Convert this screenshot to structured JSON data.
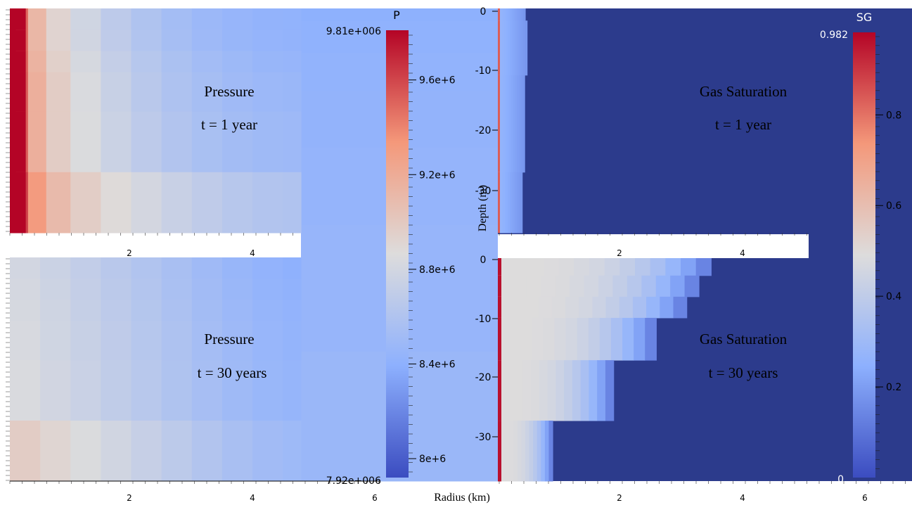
{
  "chart_data": [
    {
      "type": "heatmap",
      "panel": "top-left",
      "field": "P",
      "annotations": [
        "Pressure",
        "t = 1 year"
      ],
      "xticks": [
        "2",
        "4"
      ],
      "xlim": [
        0,
        4.8
      ],
      "ylim": [
        -37,
        0
      ],
      "x": [
        0,
        0.1,
        0.3,
        0.6,
        1.0,
        1.5,
        2.0,
        2.5,
        3.0,
        3.5,
        4.0,
        4.5,
        4.8
      ],
      "layers": [
        {
          "depth": [
            -3.5,
            0
          ],
          "values": [
            9810000.0,
            9750000.0,
            9250000.0,
            9000000.0,
            8850000.0,
            8720000.0,
            8630000.0,
            8560000.0,
            8500000.0,
            8460000.0,
            8440000.0,
            8420000.0,
            8420000.0
          ]
        },
        {
          "depth": [
            -7,
            -3.5
          ],
          "values": [
            9810000.0,
            9750000.0,
            9250000.0,
            9000000.0,
            8850000.0,
            8730000.0,
            8640000.0,
            8570000.0,
            8510000.0,
            8470000.0,
            8450000.0,
            8430000.0,
            8430000.0
          ]
        },
        {
          "depth": [
            -10.5,
            -7
          ],
          "values": [
            9810000.0,
            9750000.0,
            9280000.0,
            9020000.0,
            8880000.0,
            8760000.0,
            8670000.0,
            8600000.0,
            8540000.0,
            8500000.0,
            8470000.0,
            8450000.0,
            8450000.0
          ]
        },
        {
          "depth": [
            -17,
            -10.5
          ],
          "values": [
            9810000.0,
            9760000.0,
            9300000.0,
            9050000.0,
            8900000.0,
            8780000.0,
            8690000.0,
            8620000.0,
            8560000.0,
            8520000.0,
            8490000.0,
            8470000.0,
            8470000.0
          ]
        },
        {
          "depth": [
            -27,
            -17
          ],
          "values": [
            9810000.0,
            9760000.0,
            9300000.0,
            9050000.0,
            8900000.0,
            8800000.0,
            8710000.0,
            8640000.0,
            8580000.0,
            8540000.0,
            8510000.0,
            8490000.0,
            8490000.0
          ]
        },
        {
          "depth": [
            -37,
            -27
          ],
          "values": [
            9810000.0,
            9780000.0,
            9450000.0,
            9180000.0,
            9020000.0,
            8920000.0,
            8840000.0,
            8770000.0,
            8710000.0,
            8660000.0,
            8620000.0,
            8600000.0,
            8600000.0
          ]
        }
      ]
    },
    {
      "type": "heatmap",
      "panel": "bottom-left",
      "field": "P",
      "annotations": [
        "Pressure",
        "t = 30 years"
      ],
      "xticks": [
        "2",
        "4",
        "6"
      ],
      "xlabel": "Radius (km)",
      "xlim": [
        0,
        4.8
      ],
      "ylim": [
        -37,
        0
      ],
      "x": [
        0,
        0.5,
        1.0,
        1.5,
        2.0,
        2.5,
        3.0,
        3.5,
        4.0,
        4.5,
        4.8
      ],
      "layers": [
        {
          "depth": [
            -3.5,
            0
          ],
          "values": [
            8820000.0,
            8780000.0,
            8730000.0,
            8680000.0,
            8630000.0,
            8580000.0,
            8530000.0,
            8480000.0,
            8440000.0,
            8410000.0,
            8400000.0
          ]
        },
        {
          "depth": [
            -7,
            -3.5
          ],
          "values": [
            8830000.0,
            8790000.0,
            8740000.0,
            8690000.0,
            8640000.0,
            8590000.0,
            8540000.0,
            8490000.0,
            8450000.0,
            8420000.0,
            8410000.0
          ]
        },
        {
          "depth": [
            -10.5,
            -7
          ],
          "values": [
            8840000.0,
            8800000.0,
            8750000.0,
            8700000.0,
            8650000.0,
            8600000.0,
            8550000.0,
            8500000.0,
            8460000.0,
            8430000.0,
            8420000.0
          ]
        },
        {
          "depth": [
            -17,
            -10.5
          ],
          "values": [
            8850000.0,
            8810000.0,
            8760000.0,
            8710000.0,
            8660000.0,
            8610000.0,
            8560000.0,
            8510000.0,
            8470000.0,
            8440000.0,
            8430000.0
          ]
        },
        {
          "depth": [
            -27,
            -17
          ],
          "values": [
            8860000.0,
            8820000.0,
            8770000.0,
            8720000.0,
            8670000.0,
            8620000.0,
            8570000.0,
            8520000.0,
            8480000.0,
            8450000.0,
            8440000.0
          ]
        },
        {
          "depth": [
            -37,
            -27
          ],
          "values": [
            9000000.0,
            8950000.0,
            8880000.0,
            8820000.0,
            8760000.0,
            8700000.0,
            8640000.0,
            8580000.0,
            8530000.0,
            8500000.0,
            8490000.0
          ]
        }
      ]
    },
    {
      "type": "heatmap",
      "panel": "top-right",
      "field": "SG",
      "annotations": [
        "Gas Saturation",
        "t = 1 year"
      ],
      "xticks": [
        "2",
        "4"
      ],
      "ylabel": "Depth (m)",
      "yticks": [
        "0",
        "-10",
        "-20",
        "-30"
      ],
      "xlim": [
        0,
        5.1
      ],
      "ylim": [
        -37,
        0
      ],
      "layers": [
        {
          "depth": [
            -2,
            0
          ],
          "front_km": 0.45
        },
        {
          "depth": [
            -11,
            -2
          ],
          "front_km": 0.48
        },
        {
          "depth": [
            -27,
            -11
          ],
          "front_km": 0.44
        },
        {
          "depth": [
            -37,
            -27
          ],
          "front_km": 0.4
        }
      ]
    },
    {
      "type": "heatmap",
      "panel": "bottom-right",
      "field": "SG",
      "annotations": [
        "Gas Saturation",
        "t = 30 years"
      ],
      "xticks": [
        "2",
        "4",
        "6"
      ],
      "ylabel": "Depth (m)",
      "yticks": [
        "0",
        "-10",
        "-20",
        "-30"
      ],
      "xlim": [
        0,
        5.1
      ],
      "ylim": [
        -37,
        0
      ],
      "layers": [
        {
          "depth": [
            -3,
            0
          ],
          "front_km": 3.5
        },
        {
          "depth": [
            -6.5,
            -3
          ],
          "front_km": 3.3
        },
        {
          "depth": [
            -10,
            -6.5
          ],
          "front_km": 3.1
        },
        {
          "depth": [
            -17,
            -10
          ],
          "front_km": 2.6
        },
        {
          "depth": [
            -27,
            -17
          ],
          "front_km": 1.9
        },
        {
          "depth": [
            -37,
            -27
          ],
          "front_km": 0.9
        }
      ]
    },
    {
      "type": "heatmap",
      "panel": "colorbar-pressure",
      "title": "P",
      "range_labels": [
        "9.81e+006",
        "7.92e+006"
      ],
      "range": [
        7920000.0,
        9810000.0
      ],
      "ticks": [
        9600000.0,
        9200000.0,
        8800000.0,
        8400000.0,
        8000000.0
      ],
      "tick_labels": [
        "9.6e+6",
        "9.2e+6",
        "8.8e+6",
        "8.4e+6",
        "8e+6"
      ]
    },
    {
      "type": "heatmap",
      "panel": "colorbar-gas-saturation",
      "title": "SG",
      "range_labels": [
        "0.982",
        "0"
      ],
      "range": [
        0,
        0.982
      ],
      "ticks": [
        0.2,
        0.4,
        0.6,
        0.8
      ],
      "tick_labels": [
        "0.2",
        "0.4",
        "0.6",
        "0.8"
      ]
    }
  ],
  "colors": {
    "background_blue": "#2c3b8c",
    "cool_end": "#3b4cc0",
    "mid": "#dddcdc",
    "warm_end": "#b40426"
  }
}
